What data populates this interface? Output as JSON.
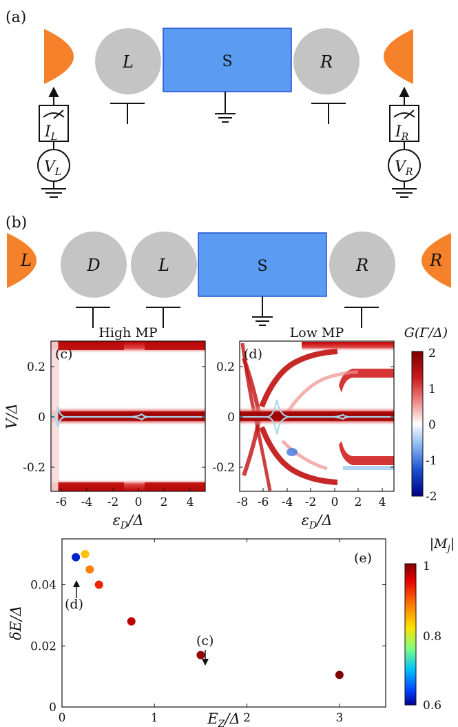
{
  "panels": {
    "a": {
      "label": "(a)",
      "dot_left": "L",
      "superconductor": "S",
      "dot_right": "R",
      "meter_left": "I",
      "meter_left_sub": "L",
      "meter_right": "I",
      "meter_right_sub": "R",
      "source_left": "V",
      "source_left_sub": "L",
      "source_right": "V",
      "source_right_sub": "R"
    },
    "b": {
      "label": "(b)",
      "lead_left": "L",
      "dot_d": "D",
      "dot_left": "L",
      "superconductor": "S",
      "dot_right": "R",
      "lead_right": "R"
    },
    "c": {
      "label": "(c)",
      "title": "High MP",
      "ylabel": "V/Δ",
      "xlabel": "ε",
      "xlabel_sub": "D",
      "xlabel_tail": "/Δ",
      "xticks": [
        "-6",
        "-4",
        "-2",
        "0",
        "2",
        "4"
      ],
      "yticks": [
        "0.2",
        "0",
        "-0.2"
      ]
    },
    "d": {
      "label": "(d)",
      "title": "Low MP",
      "xlabel": "ε",
      "xlabel_sub": "D",
      "xlabel_tail": "/Δ",
      "xticks": [
        "-8",
        "-6",
        "-4",
        "-2",
        "0",
        "2",
        "4"
      ],
      "yticks": [
        "0.2",
        "0",
        "-0.2"
      ]
    },
    "colorbar_g": {
      "title": "G(Γ/Δ)",
      "ticks": [
        "2",
        "1",
        "0",
        "-1",
        "-2"
      ]
    },
    "e": {
      "label": "(e)",
      "ylabel": "δE/Δ",
      "xlabel": "E",
      "xlabel_sub": "Z",
      "xlabel_tail": "/Δ",
      "xticks": [
        "0",
        "1",
        "2",
        "3"
      ],
      "yticks": [
        "0.04",
        "0.02",
        "0"
      ],
      "annot_d": "(d)",
      "annot_c": "(c)",
      "colorbar_title": "|M",
      "colorbar_title_sub": "j",
      "colorbar_title_tail": "|",
      "colorbar_ticks": [
        "1",
        "0.8",
        "0.6"
      ]
    }
  },
  "colors": {
    "lead": "#f5822a",
    "dot": "#c4c4c4",
    "superconductor": "#5b9cf2",
    "superconductor_border": "#1f4fd6",
    "trace": "#a9d8ec"
  },
  "chart_data": [
    {
      "type": "heatmap",
      "panel": "c",
      "title": "High MP",
      "xlabel": "εD/Δ",
      "ylabel": "V/Δ",
      "xlim": [
        -7,
        5
      ],
      "ylim": [
        -0.3,
        0.3
      ],
      "color_label": "G(Γ/Δ)",
      "color_range": [
        -2,
        2
      ]
    },
    {
      "type": "heatmap",
      "panel": "d",
      "title": "Low MP",
      "xlabel": "εD/Δ",
      "ylabel": "V/Δ",
      "xlim": [
        -8,
        5
      ],
      "ylim": [
        -0.3,
        0.3
      ],
      "color_label": "G(Γ/Δ)",
      "color_range": [
        -2,
        2
      ]
    },
    {
      "type": "scatter",
      "panel": "e",
      "xlabel": "EZ/Δ",
      "ylabel": "δE/Δ",
      "xlim": [
        0,
        3.5
      ],
      "ylim": [
        0,
        0.055
      ],
      "color_label": "|Mj|",
      "color_range": [
        0.6,
        1
      ],
      "points": [
        {
          "x": 0.15,
          "y": 0.049,
          "c": 0.62
        },
        {
          "x": 0.25,
          "y": 0.05,
          "c": 0.84
        },
        {
          "x": 0.3,
          "y": 0.045,
          "c": 0.88
        },
        {
          "x": 0.4,
          "y": 0.04,
          "c": 0.93
        },
        {
          "x": 0.75,
          "y": 0.028,
          "c": 0.97
        },
        {
          "x": 1.5,
          "y": 0.017,
          "c": 0.99
        },
        {
          "x": 3.0,
          "y": 0.0105,
          "c": 1.0
        }
      ]
    }
  ]
}
